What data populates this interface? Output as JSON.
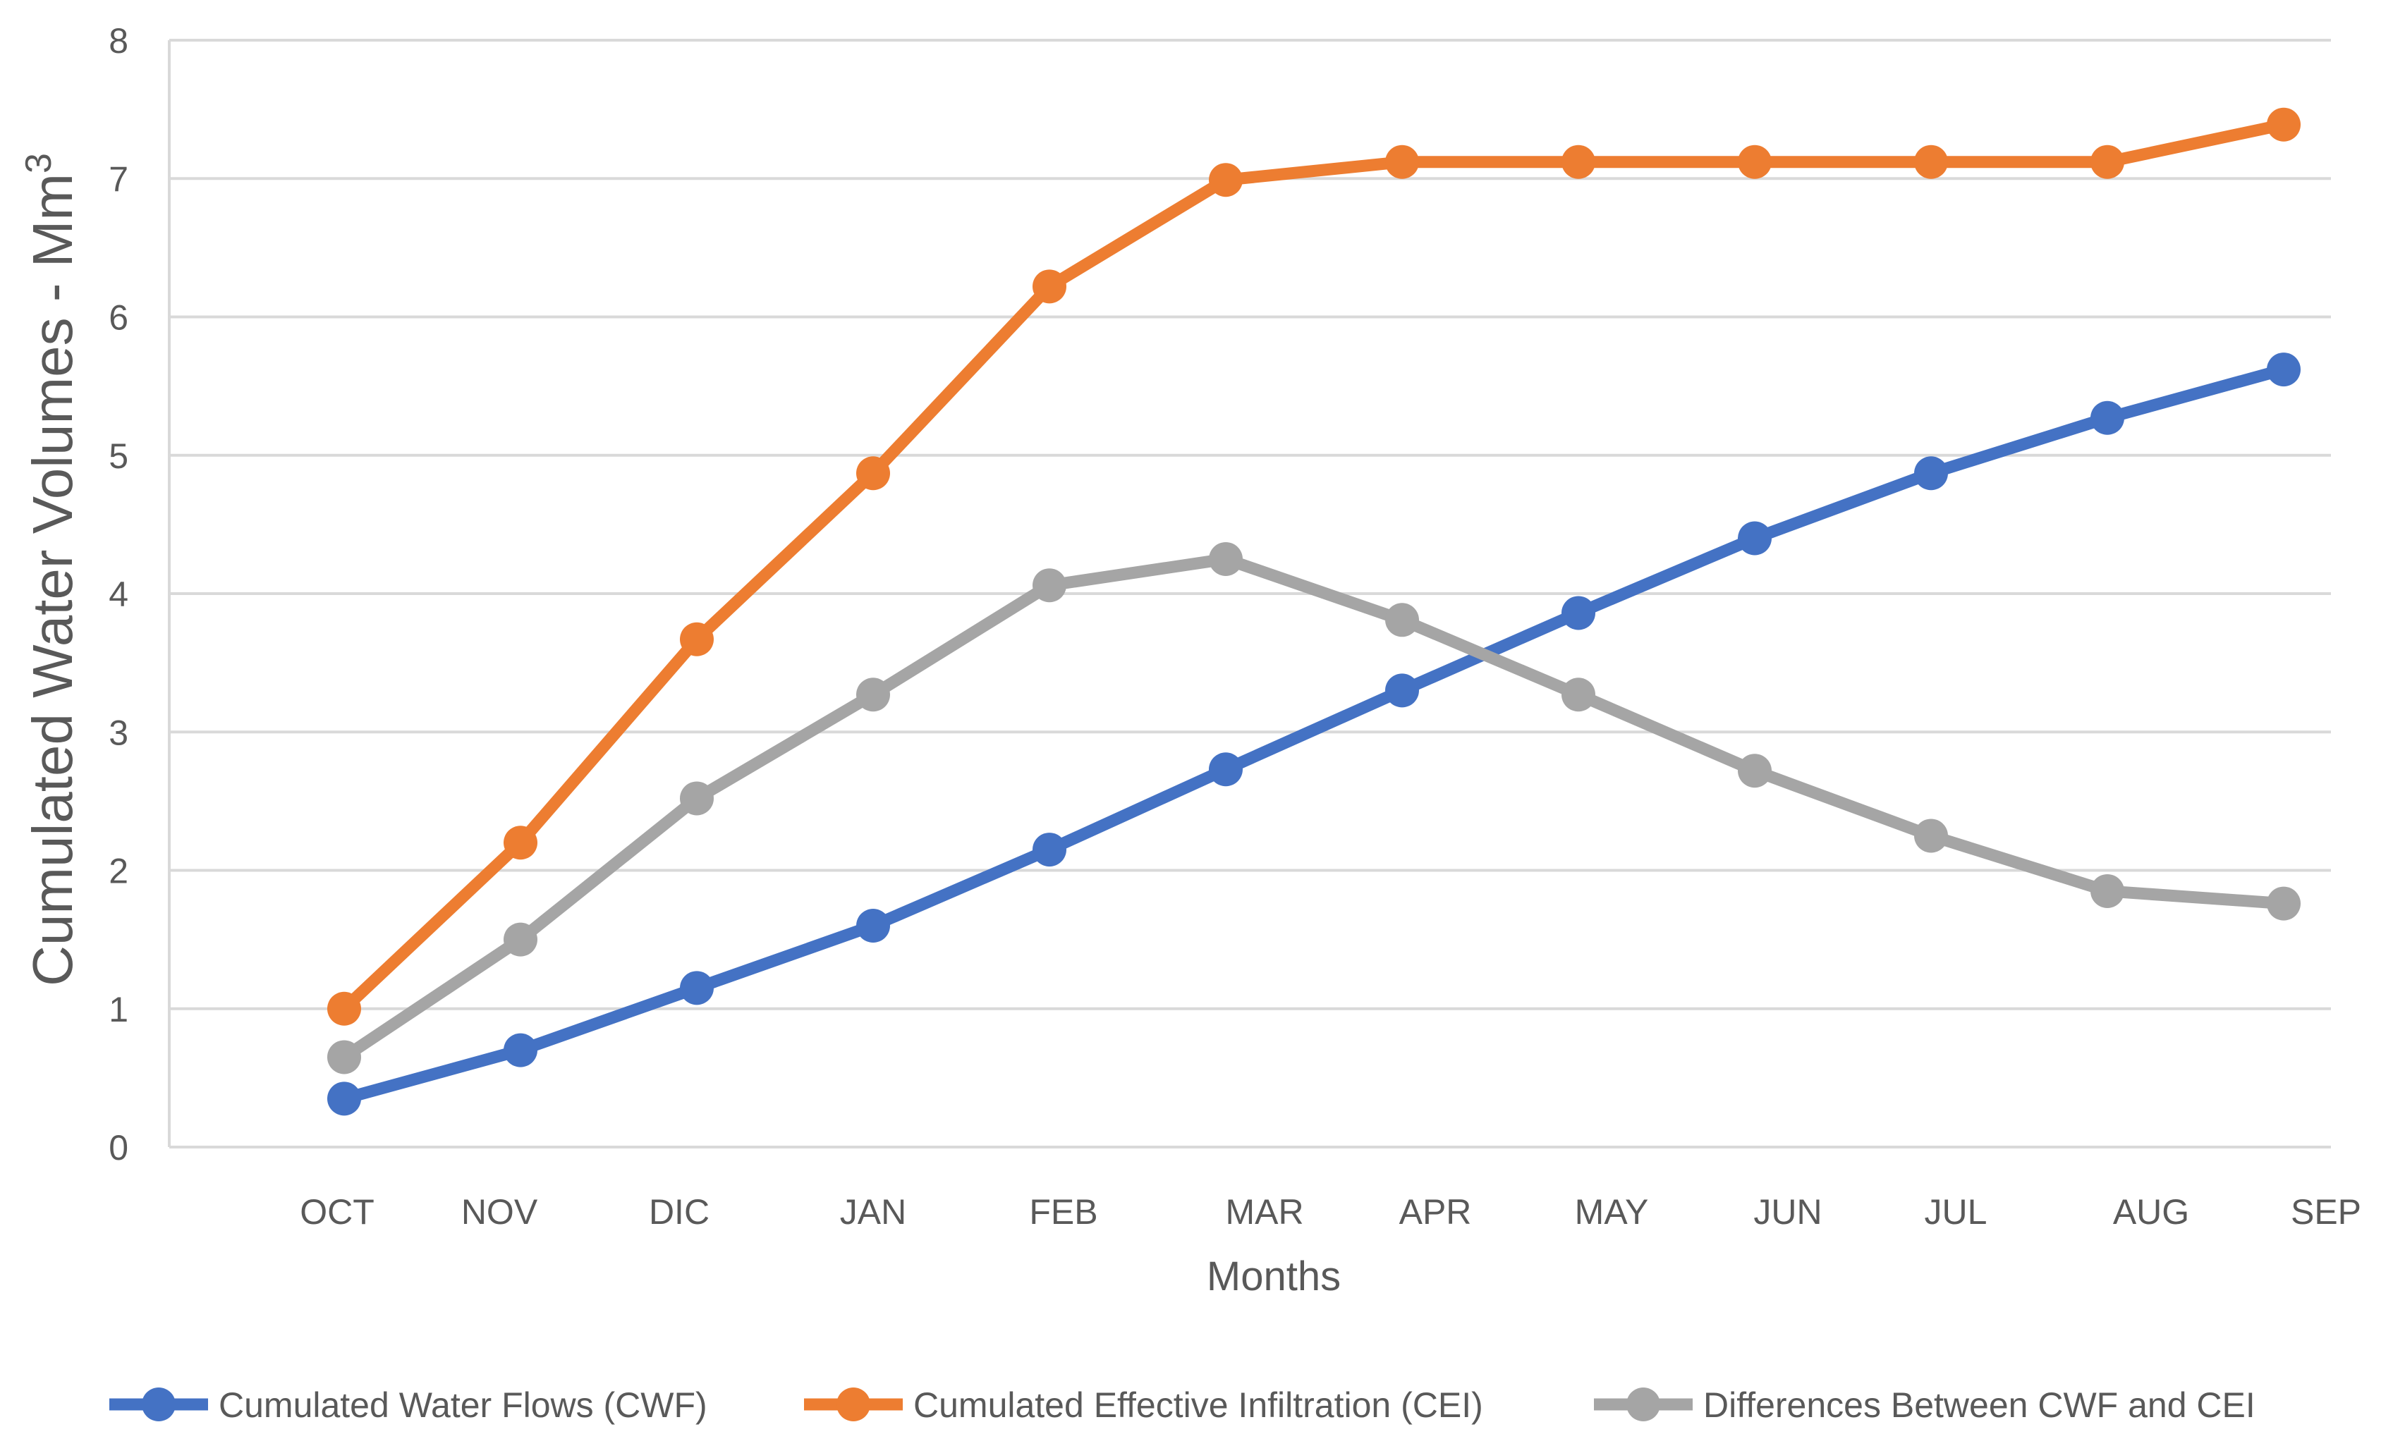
{
  "chart_data": {
    "type": "line",
    "title": "",
    "xlabel": "Months",
    "ylabel": "Cumulated Water Volumes - Mm",
    "ylabel_superscript": "3",
    "categories": [
      "OCT",
      "NOV",
      "DIC",
      "JAN",
      "FEB",
      "MAR",
      "APR",
      "MAY",
      "JUN",
      "JUL",
      "AUG",
      "SEP"
    ],
    "ylim": [
      0,
      8
    ],
    "yticks": [
      "0",
      "1",
      "2",
      "3",
      "4",
      "5",
      "6",
      "7",
      "8"
    ],
    "grid": true,
    "legend_position": "bottom",
    "series": [
      {
        "name": "Cumulated Water Flows (CWF)",
        "color": "#4472C4",
        "values": [
          0.35,
          0.7,
          1.15,
          1.6,
          2.15,
          2.73,
          3.3,
          3.86,
          4.4,
          4.87,
          5.27,
          5.62
        ]
      },
      {
        "name": "Cumulated Effective Infiltration (CEI)",
        "color": "#ED7D31",
        "values": [
          1.0,
          2.2,
          3.67,
          4.87,
          6.22,
          6.99,
          7.12,
          7.12,
          7.12,
          7.12,
          7.12,
          7.39
        ]
      },
      {
        "name": "Differences Between CWF and CEI",
        "color": "#A5A5A5",
        "values": [
          0.65,
          1.5,
          2.52,
          3.27,
          4.06,
          4.25,
          3.81,
          3.27,
          2.72,
          2.25,
          1.85,
          1.76
        ]
      }
    ]
  }
}
